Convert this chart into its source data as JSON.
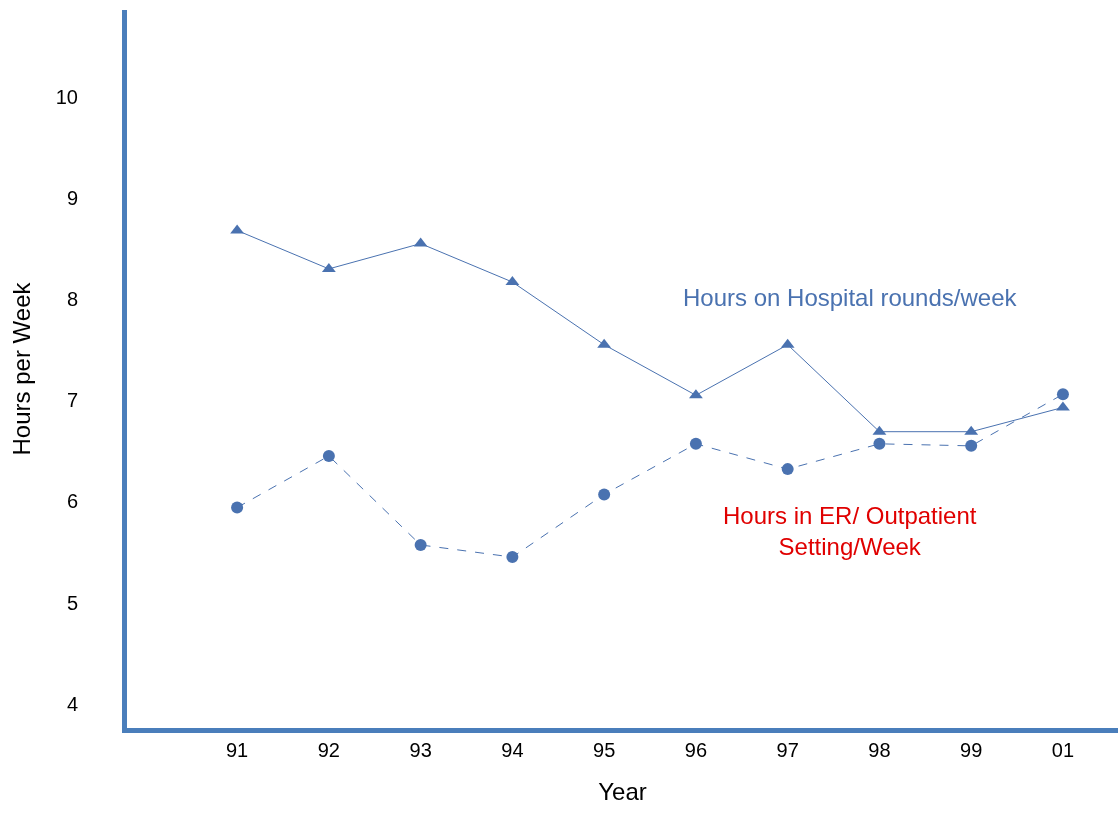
{
  "chart_data": {
    "type": "line",
    "xlabel": "Year",
    "ylabel": "Hours per Week",
    "categories": [
      "91",
      "92",
      "93",
      "94",
      "95",
      "96",
      "97",
      "98",
      "99",
      "01"
    ],
    "series": [
      {
        "name": "Hours on Hospital rounds/week",
        "color": "#4a72b0",
        "marker": "triangle",
        "line_style": "solid",
        "values": [
          8.68,
          8.3,
          8.55,
          8.17,
          7.55,
          7.05,
          7.55,
          6.69,
          6.69,
          6.93
        ]
      },
      {
        "name": "Hours in ER/ Outpatient\nSetting/Week",
        "color": "#4a72b0",
        "marker": "circle",
        "line_style": "dashed",
        "values": [
          5.94,
          6.45,
          5.57,
          5.45,
          6.07,
          6.57,
          6.32,
          6.57,
          6.55,
          7.06
        ]
      }
    ],
    "ylim": [
      3.76,
      10.86
    ],
    "yticks": [
      4,
      5,
      6,
      7,
      8,
      9,
      10
    ],
    "grid": false,
    "legend": false
  }
}
